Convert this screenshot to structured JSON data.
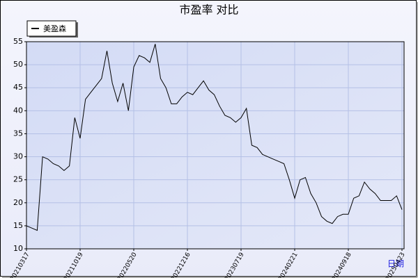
{
  "chart_data": {
    "type": "line",
    "title": "市盈率  对比",
    "x_label": "日期",
    "categories": [
      "20210317",
      null,
      null,
      null,
      null,
      null,
      null,
      null,
      null,
      null,
      "20211019",
      null,
      null,
      null,
      null,
      null,
      null,
      null,
      null,
      null,
      "20220520",
      null,
      null,
      null,
      null,
      null,
      null,
      null,
      null,
      null,
      "20221216",
      null,
      null,
      null,
      null,
      null,
      null,
      null,
      null,
      null,
      "20230719",
      null,
      null,
      null,
      null,
      null,
      null,
      null,
      null,
      null,
      "20240221",
      null,
      null,
      null,
      null,
      null,
      null,
      null,
      null,
      null,
      "20240918",
      null,
      null,
      null,
      null,
      null,
      null,
      null,
      null,
      null,
      "20250423"
    ],
    "series": [
      {
        "name": "美盈森",
        "color": "#000000",
        "values": [
          15,
          14.5,
          14,
          30,
          29.5,
          28.5,
          28,
          27,
          28,
          38.5,
          34,
          42.5,
          44,
          45.5,
          47,
          53,
          46,
          42,
          46,
          40,
          49.5,
          52,
          51.5,
          50.5,
          54.5,
          47,
          45,
          41.5,
          41.5,
          43,
          44,
          43.5,
          45,
          46.5,
          44.5,
          43.5,
          41,
          39,
          38.5,
          37.5,
          38.5,
          40.5,
          32.5,
          32,
          30.5,
          30,
          29.5,
          29,
          28.5,
          25,
          21,
          25,
          25.5,
          22,
          20,
          17,
          16,
          15.5,
          17,
          17.5,
          17.5,
          21,
          21.5,
          24.5,
          23,
          22,
          20.5,
          20.5,
          20.5,
          21.5,
          18.5
        ]
      }
    ],
    "ylim": [
      10,
      55
    ],
    "yticks": [
      10,
      15,
      20,
      25,
      30,
      35,
      40,
      45,
      50,
      55
    ],
    "grid": true,
    "legend": "top-left"
  }
}
